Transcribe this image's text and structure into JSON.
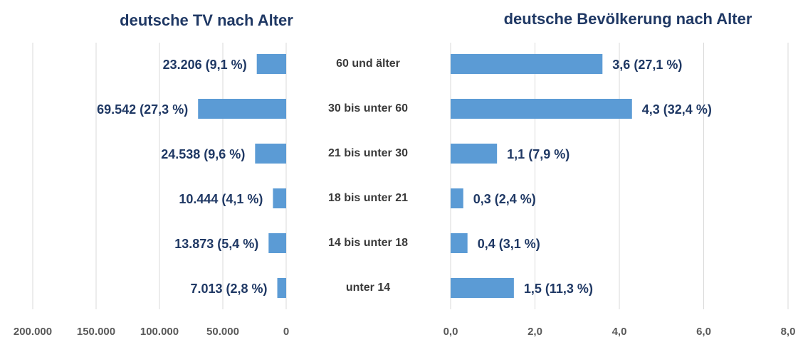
{
  "chart_data": [
    {
      "type": "bar",
      "orientation": "horizontal",
      "title": "deutsche TV nach Alter",
      "categories": [
        "60 und älter",
        "30 bis unter 60",
        "21 bis unter 30",
        "18 bis unter 21",
        "14 bis unter 18",
        "unter 14"
      ],
      "values": [
        23206,
        69542,
        24538,
        10444,
        13873,
        7013
      ],
      "value_labels": [
        "23.206 (9,1 %)",
        "69.542 (27,3 %)",
        "24.538 (9,6 %)",
        "10.444 (4,1 %)",
        "13.873 (5,4 %)",
        "7.013 (2,8 %)"
      ],
      "color": "#5b9bd5",
      "xlim": [
        200000,
        0
      ],
      "xticks": [
        {
          "value": 200000,
          "label": "200.000"
        },
        {
          "value": 150000,
          "label": "150.000"
        },
        {
          "value": 100000,
          "label": "100.000"
        },
        {
          "value": 50000,
          "label": "50.000"
        },
        0
      ],
      "grid": true
    },
    {
      "type": "bar",
      "orientation": "horizontal",
      "title": "deutsche Bevölkerung nach Alter",
      "values": [
        3.6,
        4.3,
        1.1,
        0.3,
        0.4,
        1.5
      ],
      "value_labels": [
        "3,6 (27,1 %)",
        "4,3 (32,4 %)",
        "1,1 (7,9 %)",
        "0,3 (2,4 %)",
        "0,4 (3,1 %)",
        "1,5 (11,3 %)"
      ],
      "color": "#5b9bd5",
      "xlim": [
        0,
        8
      ],
      "xticks": [
        {
          "value": 0,
          "label": "0,0"
        },
        {
          "value": 2,
          "label": "2,0"
        },
        {
          "value": 4,
          "label": "4,0"
        },
        {
          "value": 6,
          "label": "6,0"
        },
        {
          "value": 8,
          "label": "8,0"
        }
      ],
      "grid": true
    }
  ]
}
